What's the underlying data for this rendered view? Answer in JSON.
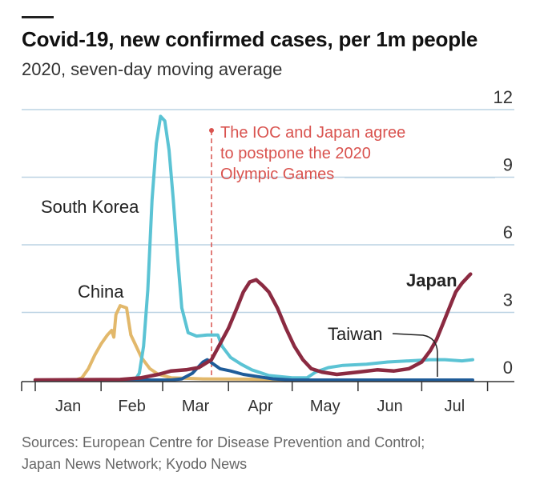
{
  "header": {
    "title": "Covid-19, new confirmed cases, per 1m people",
    "subtitle": "2020, seven-day moving average"
  },
  "footer": {
    "sources": [
      "Sources: European Centre for Disease Prevention and Control;",
      "Japan News Network; Kyodo News"
    ]
  },
  "chart_data": {
    "type": "line",
    "title": "Covid-19, new confirmed cases, per 1m people",
    "subtitle": "2020, seven-day moving average",
    "x_tick_labels": [
      "Jan",
      "Feb",
      "Mar",
      "Apr",
      "May",
      "Jun",
      "Jul"
    ],
    "y_ticks": [
      0,
      3,
      6,
      9,
      12
    ],
    "y_axis_side": "right",
    "ylim": [
      0,
      12
    ],
    "grid": "horizontal",
    "annotation": {
      "date": "2020-03-24",
      "lines": [
        "The IOC and Japan agree",
        "to postpone the 2020",
        "Olympic Games"
      ],
      "color": "#d9534f"
    },
    "series": [
      {
        "name": "China",
        "color": "#e2b86b",
        "values": [
          [
            "2020-01-01",
            0
          ],
          [
            "2020-01-20",
            0
          ],
          [
            "2020-01-23",
            0.1
          ],
          [
            "2020-01-26",
            0.5
          ],
          [
            "2020-01-29",
            1.1
          ],
          [
            "2020-02-01",
            1.6
          ],
          [
            "2020-02-04",
            2.0
          ],
          [
            "2020-02-06",
            2.2
          ],
          [
            "2020-02-07",
            1.9
          ],
          [
            "2020-02-08",
            2.9
          ],
          [
            "2020-02-10",
            3.3
          ],
          [
            "2020-02-13",
            3.2
          ],
          [
            "2020-02-14",
            2.6
          ],
          [
            "2020-02-15",
            2.0
          ],
          [
            "2020-02-17",
            1.6
          ],
          [
            "2020-02-20",
            1.0
          ],
          [
            "2020-02-24",
            0.5
          ],
          [
            "2020-02-28",
            0.25
          ],
          [
            "2020-03-05",
            0.1
          ],
          [
            "2020-03-20",
            0.05
          ],
          [
            "2020-04-10",
            0.04
          ],
          [
            "2020-04-30",
            0
          ]
        ]
      },
      {
        "name": "South Korea",
        "color": "#5bc3d4",
        "values": [
          [
            "2020-01-01",
            0
          ],
          [
            "2020-02-17",
            0
          ],
          [
            "2020-02-19",
            0.3
          ],
          [
            "2020-02-21",
            1.5
          ],
          [
            "2020-02-23",
            4.0
          ],
          [
            "2020-02-25",
            8.0
          ],
          [
            "2020-02-27",
            10.5
          ],
          [
            "2020-02-29",
            11.7
          ],
          [
            "2020-03-02",
            11.5
          ],
          [
            "2020-03-04",
            10.2
          ],
          [
            "2020-03-06",
            8.0
          ],
          [
            "2020-03-08",
            5.5
          ],
          [
            "2020-03-10",
            3.2
          ],
          [
            "2020-03-13",
            2.1
          ],
          [
            "2020-03-17",
            1.95
          ],
          [
            "2020-03-22",
            2.0
          ],
          [
            "2020-03-27",
            2.0
          ],
          [
            "2020-03-29",
            1.5
          ],
          [
            "2020-04-02",
            1.0
          ],
          [
            "2020-04-07",
            0.7
          ],
          [
            "2020-04-12",
            0.45
          ],
          [
            "2020-04-20",
            0.2
          ],
          [
            "2020-05-01",
            0.1
          ],
          [
            "2020-05-08",
            0.1
          ],
          [
            "2020-05-12",
            0.35
          ],
          [
            "2020-05-18",
            0.55
          ],
          [
            "2020-05-25",
            0.65
          ],
          [
            "2020-06-05",
            0.7
          ],
          [
            "2020-06-15",
            0.8
          ],
          [
            "2020-06-25",
            0.85
          ],
          [
            "2020-07-05",
            0.9
          ],
          [
            "2020-07-12",
            0.9
          ],
          [
            "2020-07-20",
            0.85
          ],
          [
            "2020-07-25",
            0.9
          ]
        ]
      },
      {
        "name": "Japan",
        "color": "#8b2a41",
        "values": [
          [
            "2020-01-01",
            0
          ],
          [
            "2020-02-10",
            0.02
          ],
          [
            "2020-02-20",
            0.1
          ],
          [
            "2020-02-28",
            0.25
          ],
          [
            "2020-03-05",
            0.4
          ],
          [
            "2020-03-12",
            0.45
          ],
          [
            "2020-03-18",
            0.55
          ],
          [
            "2020-03-24",
            0.9
          ],
          [
            "2020-03-28",
            1.6
          ],
          [
            "2020-04-01",
            2.3
          ],
          [
            "2020-04-05",
            3.2
          ],
          [
            "2020-04-08",
            3.9
          ],
          [
            "2020-04-11",
            4.35
          ],
          [
            "2020-04-14",
            4.45
          ],
          [
            "2020-04-17",
            4.2
          ],
          [
            "2020-04-20",
            3.9
          ],
          [
            "2020-04-24",
            3.2
          ],
          [
            "2020-04-28",
            2.3
          ],
          [
            "2020-05-02",
            1.5
          ],
          [
            "2020-05-06",
            0.9
          ],
          [
            "2020-05-10",
            0.5
          ],
          [
            "2020-05-15",
            0.35
          ],
          [
            "2020-05-22",
            0.25
          ],
          [
            "2020-06-01",
            0.35
          ],
          [
            "2020-06-10",
            0.45
          ],
          [
            "2020-06-18",
            0.4
          ],
          [
            "2020-06-25",
            0.5
          ],
          [
            "2020-07-01",
            0.8
          ],
          [
            "2020-07-05",
            1.3
          ],
          [
            "2020-07-08",
            1.8
          ],
          [
            "2020-07-11",
            2.5
          ],
          [
            "2020-07-14",
            3.2
          ],
          [
            "2020-07-17",
            3.9
          ],
          [
            "2020-07-20",
            4.3
          ],
          [
            "2020-07-24",
            4.7
          ]
        ]
      },
      {
        "name": "Taiwan",
        "color": "#1f5c99",
        "values": [
          [
            "2020-01-01",
            0
          ],
          [
            "2020-03-05",
            0
          ],
          [
            "2020-03-10",
            0.05
          ],
          [
            "2020-03-15",
            0.3
          ],
          [
            "2020-03-18",
            0.6
          ],
          [
            "2020-03-20",
            0.8
          ],
          [
            "2020-03-22",
            0.9
          ],
          [
            "2020-03-25",
            0.7
          ],
          [
            "2020-03-28",
            0.5
          ],
          [
            "2020-04-02",
            0.4
          ],
          [
            "2020-04-08",
            0.25
          ],
          [
            "2020-04-15",
            0.15
          ],
          [
            "2020-04-22",
            0.05
          ],
          [
            "2020-05-01",
            0
          ],
          [
            "2020-07-25",
            0
          ]
        ]
      }
    ],
    "series_labels": [
      "South Korea",
      "China",
      "Japan",
      "Taiwan"
    ]
  },
  "colors": {
    "grid": "#bcd3e3",
    "axis": "#333333",
    "annotation": "#d9534f"
  }
}
